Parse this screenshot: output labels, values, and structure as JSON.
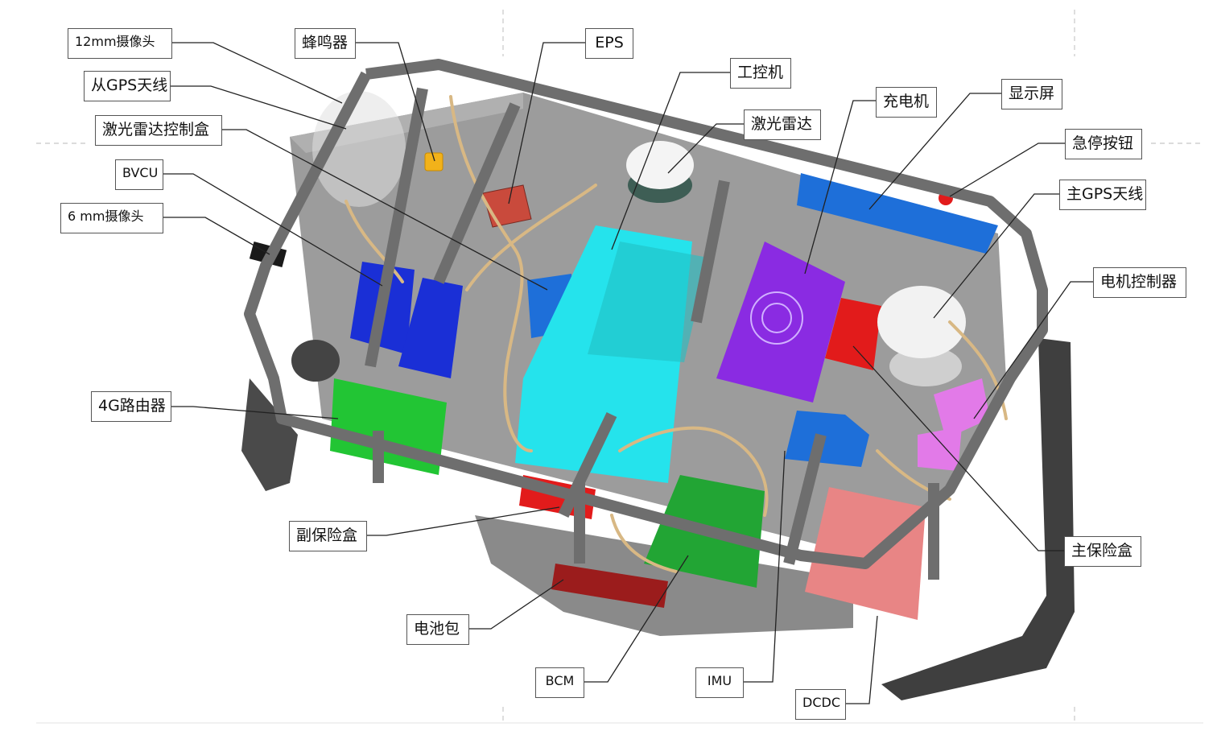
{
  "labels": {
    "camera_12mm": "12mm摄像头",
    "buzzer": "蜂鸣器",
    "eps": "EPS",
    "ipc": "工控机",
    "gps_secondary": "从GPS天线",
    "lidar_control_box": "激光雷达控制盒",
    "bvcu": "BVCU",
    "camera_6mm": "6 mm摄像头",
    "lidar": "激光雷达",
    "charger": "充电机",
    "display": "显示屏",
    "estop": "急停按钮",
    "gps_main": "主GPS天线",
    "motor_controller": "电机控制器",
    "router_4g": "4G路由器",
    "sub_fuse_box": "副保险盒",
    "main_fuse_box": "主保险盒",
    "battery": "电池包",
    "bcm": "BCM",
    "imu": "IMU",
    "dcdc": "DCDC"
  },
  "colors": {
    "frame": "#707070",
    "floor": "#9a9a9a",
    "harness": "#d8b884",
    "bvcu_blue": "#1a2fd6",
    "cyan": "#25e3ec",
    "purple": "#8a2be2",
    "red": "#e21b1b",
    "green": "#22a534",
    "pink": "#e88585",
    "display_blue": "#1e6fd9",
    "magenta": "#e27ae8"
  }
}
